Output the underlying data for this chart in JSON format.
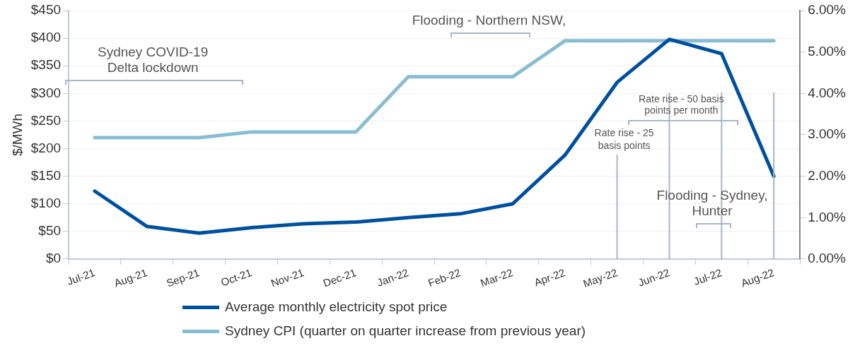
{
  "chart_data": {
    "type": "line",
    "ylabel": "$/MWh",
    "categories": [
      "Jul-21",
      "Aug-21",
      "Sep-21",
      "Oct-21",
      "Nov-21",
      "Dec-21",
      "Jan-22",
      "Feb-22",
      "Mar-22",
      "Apr-22",
      "May-22",
      "Jun-22",
      "Jul-22",
      "Aug-22"
    ],
    "series": [
      {
        "name": "Average monthly electricity spot price",
        "color": "#0050a0",
        "values": [
          123,
          59,
          47,
          57,
          64,
          67,
          75,
          82,
          100,
          188,
          320,
          398,
          372,
          150
        ]
      },
      {
        "name": "Sydney CPI (quarter on quarter increase from previous year)",
        "color": "#88bdd3",
        "axis": "y2",
        "values": [
          2.93,
          2.93,
          2.93,
          3.07,
          3.07,
          3.07,
          4.4,
          4.4,
          4.4,
          5.27,
          5.27,
          5.27,
          5.27,
          5.27
        ]
      }
    ],
    "ylim": [
      0,
      450
    ],
    "yticks": [
      {
        "value": 0,
        "label": "$0"
      },
      {
        "value": 50,
        "label": "$50"
      },
      {
        "value": 100,
        "label": "$100"
      },
      {
        "value": 150,
        "label": "$150"
      },
      {
        "value": 200,
        "label": "$200"
      },
      {
        "value": 250,
        "label": "$250"
      },
      {
        "value": 300,
        "label": "$300"
      },
      {
        "value": 350,
        "label": "$350"
      },
      {
        "value": 400,
        "label": "$400"
      },
      {
        "value": 450,
        "label": "$450"
      }
    ],
    "y2lim": [
      0,
      6
    ],
    "y2ticks": [
      {
        "value": 0,
        "label": "0.00%"
      },
      {
        "value": 1,
        "label": "1.00%"
      },
      {
        "value": 2,
        "label": "2.00%"
      },
      {
        "value": 3,
        "label": "3.00%"
      },
      {
        "value": 4,
        "label": "4.00%"
      },
      {
        "value": 5,
        "label": "5.00%"
      },
      {
        "value": 6,
        "label": "6.00%"
      }
    ],
    "ref_lines": [
      {
        "axis": "x",
        "value": "May-22",
        "label": "Rate rise - 25 basis points",
        "color": "#a8b4c8"
      },
      {
        "axis": "x",
        "value": "Jun-22",
        "color": "#a8b4c8"
      },
      {
        "axis": "x",
        "value": "Jul-22",
        "color": "#a8b4c8"
      },
      {
        "axis": "x",
        "value": "Aug-22",
        "color": "#a8b4c8"
      }
    ],
    "annotations": [
      "Sydney COVID-19\nDelta lockdown",
      "Flooding - Northern NSW,",
      "Rate rise - 50 basis\npoints per month",
      "Flooding - Sydney,\nHunter"
    ],
    "grid": "y",
    "legend": "bottom",
    "marker": "none",
    "line_style": "solid"
  }
}
